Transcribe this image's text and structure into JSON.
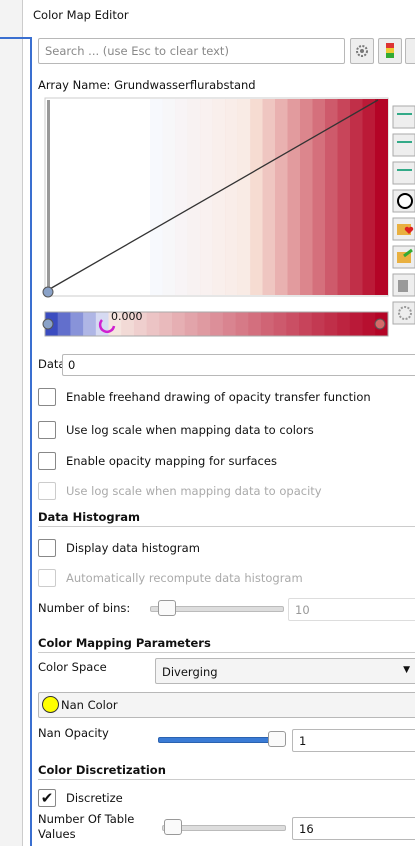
{
  "panel": {
    "title": "Color Map Editor",
    "search_placeholder": "Search ... (use Esc to clear text)",
    "array_name": "Array Name: Grundwasserflurabstand",
    "colorbar_label": "0.000",
    "data_label": "Data:",
    "data_value": "0",
    "options": [
      {
        "label": "Enable freehand drawing of opacity transfer function",
        "checked": false,
        "disabled": false
      },
      {
        "label": "Use log scale when mapping data to colors",
        "checked": false,
        "disabled": false
      },
      {
        "label": "Enable opacity mapping for surfaces",
        "checked": false,
        "disabled": false
      },
      {
        "label": "Use log scale when mapping data to opacity",
        "checked": false,
        "disabled": true
      }
    ],
    "histogram": {
      "title": "Data Histogram",
      "options": [
        {
          "label": "Display data histogram",
          "checked": false,
          "disabled": false
        },
        {
          "label": "Automatically recompute data histogram",
          "checked": false,
          "disabled": true
        }
      ],
      "bins_label": "Number of bins:",
      "bins_value": "10"
    },
    "mapping": {
      "title": "Color Mapping Parameters",
      "color_space_label": "Color Space",
      "color_space": "Diverging",
      "nan_color_button": "Nan Color",
      "nan_opacity_label": "Nan Opacity",
      "nan_opacity": "1"
    },
    "discretization": {
      "title": "Color Discretization",
      "option": {
        "label": "Discretize",
        "checked": true,
        "disabled": false
      },
      "table_values_label": "Number Of Table Values",
      "table_values": "16"
    }
  }
}
